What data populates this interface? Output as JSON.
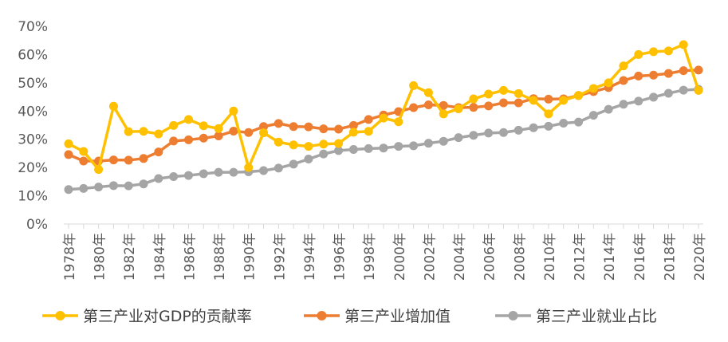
{
  "chart_data": {
    "type": "line",
    "x": [
      "1978年",
      "1979年",
      "1980年",
      "1981年",
      "1982年",
      "1983年",
      "1984年",
      "1985年",
      "1986年",
      "1987年",
      "1988年",
      "1989年",
      "1990年",
      "1991年",
      "1992年",
      "1993年",
      "1994年",
      "1995年",
      "1996年",
      "1997年",
      "1998年",
      "1999年",
      "2000年",
      "2001年",
      "2002年",
      "2003年",
      "2004年",
      "2005年",
      "2006年",
      "2007年",
      "2008年",
      "2009年",
      "2010年",
      "2011年",
      "2012年",
      "2013年",
      "2014年",
      "2015年",
      "2016年",
      "2017年",
      "2018年",
      "2019年",
      "2020年"
    ],
    "x_tick_labels": [
      "1978年",
      "1980年",
      "1982年",
      "1984年",
      "1986年",
      "1988年",
      "1990年",
      "1992年",
      "1994年",
      "1996年",
      "1998年",
      "2000年",
      "2002年",
      "2004年",
      "2006年",
      "2008年",
      "2010年",
      "2012年",
      "2014年",
      "2016年",
      "2018年",
      "2020年"
    ],
    "ylim": [
      0,
      70
    ],
    "y_ticks": [
      "0%",
      "10%",
      "20%",
      "30%",
      "40%",
      "50%",
      "60%",
      "70%"
    ],
    "grid": false,
    "legend_position": "bottom",
    "series": [
      {
        "name": "第三产业对GDP的贡献率",
        "color": "#FFC000",
        "values": [
          28.4,
          25.7,
          19.3,
          41.7,
          32.7,
          32.8,
          31.9,
          34.9,
          37.0,
          34.8,
          33.8,
          40.0,
          20.0,
          32.3,
          29.0,
          28.0,
          27.5,
          28.3,
          28.5,
          32.5,
          32.8,
          37.5,
          36.2,
          49.0,
          46.5,
          39.0,
          40.8,
          44.3,
          46.0,
          47.3,
          46.2,
          43.8,
          39.0,
          43.8,
          45.5,
          48.0,
          50.0,
          56.0,
          60.0,
          61.0,
          61.3,
          63.5,
          47.3
        ]
      },
      {
        "name": "第三产业增加值",
        "color": "#ED7D31",
        "values": [
          24.6,
          22.3,
          22.3,
          22.7,
          22.6,
          23.2,
          25.5,
          29.4,
          29.8,
          30.4,
          31.2,
          32.9,
          32.4,
          34.5,
          35.6,
          34.5,
          34.4,
          33.7,
          33.6,
          34.9,
          37.0,
          38.6,
          39.8,
          41.2,
          42.2,
          42.0,
          41.2,
          41.3,
          41.8,
          42.9,
          42.9,
          44.4,
          44.2,
          44.3,
          45.5,
          46.9,
          48.3,
          50.8,
          52.4,
          52.7,
          53.3,
          54.3,
          54.5
        ]
      },
      {
        "name": "第三产业就业占比",
        "color": "#A5A5A5",
        "values": [
          12.2,
          12.6,
          13.1,
          13.6,
          13.5,
          14.2,
          16.1,
          16.8,
          17.2,
          17.8,
          18.3,
          18.3,
          18.5,
          18.9,
          19.8,
          21.2,
          23.0,
          24.8,
          26.0,
          26.4,
          26.7,
          26.9,
          27.5,
          27.7,
          28.6,
          29.3,
          30.6,
          31.4,
          32.2,
          32.4,
          33.2,
          34.1,
          34.6,
          35.7,
          36.1,
          38.5,
          40.6,
          42.4,
          43.5,
          44.9,
          46.3,
          47.4,
          47.7
        ]
      }
    ]
  }
}
